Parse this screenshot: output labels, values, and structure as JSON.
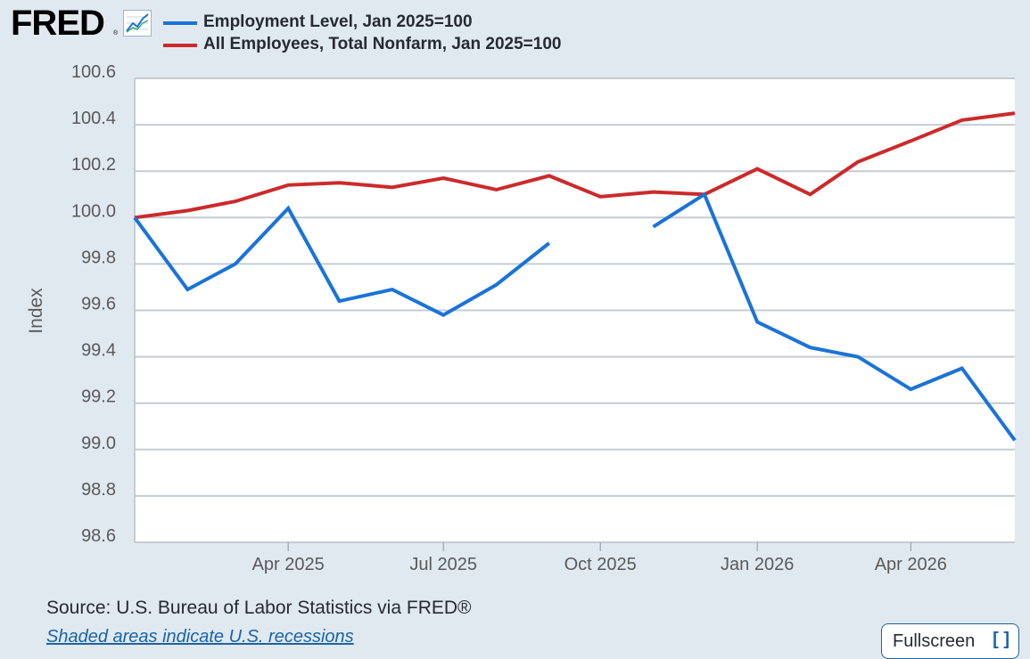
{
  "brand": {
    "logo_text": "FRED",
    "logo_mark": "®",
    "graph_icon": "chart-line-icon"
  },
  "legend": [
    {
      "label": "Employment Level, Jan 2025=100",
      "color": "#1a73d9"
    },
    {
      "label": "All Employees, Total Nonfarm, Jan 2025=100",
      "color": "#cc2a2a"
    }
  ],
  "chart_data": {
    "type": "line",
    "ylabel": "Index",
    "xlabel": "",
    "ylim": [
      98.6,
      100.6
    ],
    "yticks": [
      98.6,
      98.8,
      99.0,
      99.2,
      99.4,
      99.6,
      99.8,
      100.0,
      100.2,
      100.4,
      100.6
    ],
    "ytick_labels": [
      "98.6",
      "98.8",
      "99.0",
      "99.2",
      "99.4",
      "99.6",
      "99.8",
      "100.0",
      "100.2",
      "100.4",
      "100.6"
    ],
    "xlim": [
      "2025-01-01",
      "2026-06-01"
    ],
    "xticks": [
      "2025-04-01",
      "2025-07-01",
      "2025-10-01",
      "2026-01-01",
      "2026-04-01"
    ],
    "xtick_labels": [
      "Apr 2025",
      "Jul 2025",
      "Oct 2025",
      "Jan 2026",
      "Apr 2026"
    ],
    "grid": "horizontal",
    "legend_position": "top",
    "series": [
      {
        "name": "Employment Level, Jan 2025=100",
        "color": "#1a73d9",
        "x": [
          "2025-01-01",
          "2025-02-01",
          "2025-03-01",
          "2025-04-01",
          "2025-05-01",
          "2025-06-01",
          "2025-07-01",
          "2025-08-01",
          "2025-09-01",
          "2025-10-01",
          "2025-11-01",
          "2025-12-01",
          "2026-01-01",
          "2026-02-01",
          "2026-03-01",
          "2026-04-01",
          "2026-05-01",
          "2026-06-01"
        ],
        "y": [
          100.0,
          99.69,
          99.8,
          100.04,
          99.64,
          99.69,
          99.58,
          99.71,
          99.89,
          null,
          99.96,
          100.1,
          99.55,
          99.44,
          99.4,
          99.26,
          99.35,
          99.04
        ]
      },
      {
        "name": "All Employees, Total Nonfarm, Jan 2025=100",
        "color": "#cc2a2a",
        "x": [
          "2025-01-01",
          "2025-02-01",
          "2025-03-01",
          "2025-04-01",
          "2025-05-01",
          "2025-06-01",
          "2025-07-01",
          "2025-08-01",
          "2025-09-01",
          "2025-10-01",
          "2025-11-01",
          "2025-12-01",
          "2026-01-01",
          "2026-02-01",
          "2026-03-01",
          "2026-04-01",
          "2026-05-01",
          "2026-06-01"
        ],
        "y": [
          100.0,
          100.03,
          100.07,
          100.14,
          100.15,
          100.13,
          100.17,
          100.12,
          100.18,
          100.09,
          100.11,
          100.1,
          100.21,
          100.1,
          100.24,
          100.33,
          100.42,
          100.45
        ]
      }
    ]
  },
  "footer": {
    "source": "Source: U.S. Bureau of Labor Statistics via FRED®",
    "recession_note": "Shaded areas indicate U.S. recessions",
    "fullscreen_label": "Fullscreen",
    "fullscreen_icon": "expand-icon"
  }
}
